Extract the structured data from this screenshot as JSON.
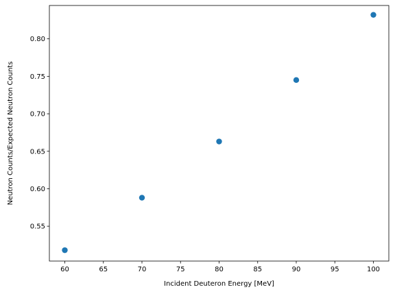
{
  "chart_data": {
    "type": "scatter",
    "title": "",
    "xlabel": "Incident Deuteron Energy [MeV]",
    "ylabel": "Neutron Counts/Expected Neutron Counts",
    "xlim": [
      58,
      102
    ],
    "ylim": [
      0.5035,
      0.8445
    ],
    "xticks": [
      60,
      65,
      70,
      75,
      80,
      85,
      90,
      95,
      100
    ],
    "xtick_labels": [
      "60",
      "65",
      "70",
      "75",
      "80",
      "85",
      "90",
      "95",
      "100"
    ],
    "yticks": [
      0.55,
      0.6,
      0.65,
      0.7,
      0.75,
      0.8
    ],
    "ytick_labels": [
      "0.55",
      "0.60",
      "0.65",
      "0.70",
      "0.75",
      "0.80"
    ],
    "grid": false,
    "series": [
      {
        "color": "#1f77b4",
        "x": [
          60,
          70,
          80,
          90,
          100
        ],
        "y": [
          0.518,
          0.588,
          0.663,
          0.745,
          0.832
        ]
      }
    ]
  }
}
